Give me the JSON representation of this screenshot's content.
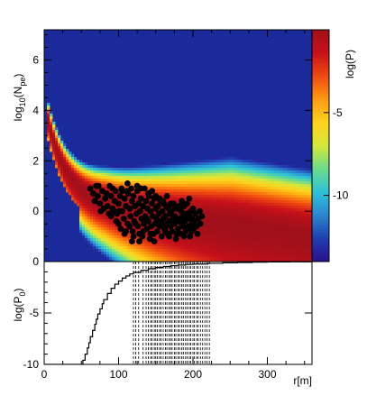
{
  "chart_data": [
    {
      "type": "heatmap",
      "xlim": [
        0,
        360
      ],
      "ylim": [
        -2,
        7.2
      ],
      "ylabel_main": "log",
      "ylabel_sub": "10",
      "ylabel_paren": "(N",
      "ylabel_sub2": "pe",
      "ylabel_close": ")",
      "y_ticks": [
        "0",
        "2",
        "4",
        "6"
      ],
      "y_tick_values": [
        0,
        2,
        4,
        6
      ],
      "colorbar": {
        "label": "log(P)",
        "range": [
          -14,
          0
        ],
        "tick_labels": [
          "-5",
          "-10"
        ],
        "tick_values": [
          -5,
          -10
        ],
        "colors": [
          "#2a0f8f",
          "#1f3fb0",
          "#2a86d0",
          "#2dc2d8",
          "#6bdc8a",
          "#d6e83a",
          "#ffd21c",
          "#ff9a10",
          "#f04a10",
          "#c8101a",
          "#a0101a"
        ]
      },
      "points": [
        [
          62,
          0.9
        ],
        [
          70,
          1.0
        ],
        [
          66,
          0.7
        ],
        [
          75,
          0.3
        ],
        [
          78,
          0.8
        ],
        [
          82,
          0.5
        ],
        [
          85,
          0.2
        ],
        [
          88,
          1.0
        ],
        [
          90,
          0.6
        ],
        [
          92,
          0.1
        ],
        [
          95,
          0.4
        ],
        [
          96,
          0.8
        ],
        [
          98,
          -0.1
        ],
        [
          100,
          0.3
        ],
        [
          102,
          0.6
        ],
        [
          104,
          0.9
        ],
        [
          105,
          0.0
        ],
        [
          107,
          -0.3
        ],
        [
          108,
          0.5
        ],
        [
          110,
          0.2
        ],
        [
          112,
          -0.5
        ],
        [
          113,
          0.7
        ],
        [
          115,
          0.1
        ],
        [
          116,
          -0.2
        ],
        [
          118,
          0.4
        ],
        [
          119,
          -0.8
        ],
        [
          120,
          0.6
        ],
        [
          121,
          -0.4
        ],
        [
          122,
          0.2
        ],
        [
          124,
          -0.1
        ],
        [
          125,
          0.8
        ],
        [
          126,
          -0.6
        ],
        [
          127,
          0.3
        ],
        [
          128,
          -0.9
        ],
        [
          129,
          0.0
        ],
        [
          130,
          0.5
        ],
        [
          131,
          -0.3
        ],
        [
          132,
          -1.0
        ],
        [
          133,
          0.2
        ],
        [
          134,
          -0.5
        ],
        [
          135,
          0.9
        ],
        [
          136,
          -0.2
        ],
        [
          137,
          0.4
        ],
        [
          138,
          -0.7
        ],
        [
          139,
          0.1
        ],
        [
          140,
          -0.4
        ],
        [
          141,
          0.6
        ],
        [
          142,
          -1.1
        ],
        [
          143,
          0.0
        ],
        [
          144,
          -0.6
        ],
        [
          145,
          0.3
        ],
        [
          146,
          -0.2
        ],
        [
          147,
          -0.9
        ],
        [
          148,
          0.5
        ],
        [
          149,
          -0.5
        ],
        [
          150,
          0.1
        ],
        [
          151,
          -0.3
        ],
        [
          152,
          -0.8
        ],
        [
          153,
          0.2
        ],
        [
          154,
          -0.1
        ],
        [
          155,
          -0.6
        ],
        [
          156,
          0.4
        ],
        [
          157,
          -0.4
        ],
        [
          158,
          -1.0
        ],
        [
          159,
          0.0
        ],
        [
          160,
          -0.3
        ],
        [
          161,
          0.3
        ],
        [
          162,
          -0.7
        ],
        [
          163,
          -0.2
        ],
        [
          164,
          0.2
        ],
        [
          165,
          -0.5
        ],
        [
          166,
          -0.9
        ],
        [
          167,
          0.1
        ],
        [
          168,
          -0.4
        ],
        [
          169,
          -0.1
        ],
        [
          170,
          -0.6
        ],
        [
          171,
          0.0
        ],
        [
          172,
          -0.8
        ],
        [
          173,
          -0.3
        ],
        [
          174,
          0.3
        ],
        [
          175,
          -0.5
        ],
        [
          176,
          -0.2
        ],
        [
          177,
          -1.1
        ],
        [
          178,
          0.1
        ],
        [
          179,
          -0.4
        ],
        [
          180,
          -0.7
        ],
        [
          181,
          0.2
        ],
        [
          182,
          -0.3
        ],
        [
          183,
          -0.9
        ],
        [
          184,
          0.0
        ],
        [
          185,
          -0.5
        ],
        [
          186,
          -0.2
        ],
        [
          187,
          -0.6
        ],
        [
          188,
          0.2
        ],
        [
          189,
          -0.4
        ],
        [
          190,
          -0.8
        ],
        [
          191,
          -0.1
        ],
        [
          192,
          0.3
        ],
        [
          193,
          -0.3
        ],
        [
          194,
          -0.6
        ],
        [
          195,
          -0.2
        ],
        [
          196,
          -1.0
        ],
        [
          197,
          0.0
        ],
        [
          198,
          -0.5
        ],
        [
          199,
          -0.3
        ],
        [
          200,
          0.1
        ],
        [
          201,
          -0.7
        ],
        [
          202,
          -0.4
        ],
        [
          203,
          -0.1
        ],
        [
          205,
          -0.6
        ],
        [
          207,
          -0.3
        ],
        [
          209,
          0.0
        ],
        [
          210,
          -0.5
        ],
        [
          212,
          -0.2
        ],
        [
          90,
          -0.2
        ],
        [
          100,
          -0.5
        ],
        [
          110,
          -0.8
        ],
        [
          115,
          -0.6
        ],
        [
          120,
          -1.0
        ],
        [
          105,
          0.8
        ],
        [
          112,
          1.1
        ],
        [
          125,
          1.0
        ],
        [
          130,
          0.9
        ],
        [
          140,
          0.7
        ],
        [
          145,
          0.8
        ],
        [
          150,
          0.6
        ],
        [
          155,
          0.5
        ],
        [
          160,
          0.4
        ],
        [
          165,
          0.6
        ],
        [
          170,
          0.3
        ],
        [
          175,
          0.2
        ],
        [
          185,
          0.4
        ],
        [
          195,
          0.5
        ],
        [
          92,
          0.9
        ],
        [
          97,
          -0.4
        ],
        [
          108,
          -0.9
        ],
        [
          118,
          -1.2
        ],
        [
          128,
          -1.2
        ],
        [
          138,
          -0.3
        ],
        [
          148,
          -1.2
        ],
        [
          158,
          -0.5
        ],
        [
          168,
          -1.0
        ],
        [
          178,
          -0.9
        ],
        [
          188,
          -1.0
        ],
        [
          198,
          -0.8
        ],
        [
          206,
          -0.9
        ],
        [
          80,
          0.1
        ],
        [
          84,
          0.7
        ],
        [
          87,
          -0.1
        ],
        [
          72,
          0.6
        ],
        [
          76,
          0.0
        ],
        [
          68,
          0.4
        ],
        [
          73,
          1.0
        ],
        [
          94,
          0.0
        ],
        [
          101,
          0.0
        ],
        [
          103,
          -0.7
        ],
        [
          111,
          0.8
        ],
        [
          117,
          0.9
        ],
        [
          123,
          -0.5
        ],
        [
          133,
          -0.8
        ],
        [
          143,
          -0.9
        ],
        [
          153,
          -0.4
        ],
        [
          163,
          -0.8
        ],
        [
          173,
          -0.2
        ],
        [
          183,
          0.1
        ],
        [
          193,
          -0.7
        ],
        [
          203,
          -0.6
        ]
      ]
    },
    {
      "type": "line",
      "xlim": [
        0,
        360
      ],
      "ylim": [
        -10,
        0
      ],
      "xlabel": "r[m]",
      "ylabel_main": "log(P",
      "ylabel_sub": "0",
      "ylabel_close": ")",
      "x_ticks": [
        "0",
        "100",
        "200",
        "300"
      ],
      "x_tick_values": [
        0,
        100,
        200,
        300
      ],
      "y_ticks": [
        "0",
        "-5",
        "-10"
      ],
      "y_tick_values": [
        0,
        -5,
        -10
      ],
      "x": [
        0,
        50,
        52,
        55,
        58,
        60,
        62,
        65,
        68,
        70,
        72,
        75,
        78,
        80,
        85,
        90,
        95,
        100,
        105,
        110,
        115,
        120,
        130,
        140,
        150,
        160,
        170,
        180,
        190,
        200,
        220,
        240,
        260,
        280,
        300,
        330,
        360
      ],
      "y": [
        -10,
        -10,
        -9.6,
        -9.0,
        -8.4,
        -7.9,
        -7.3,
        -6.7,
        -6.1,
        -5.6,
        -5.1,
        -4.6,
        -4.1,
        -3.7,
        -3.1,
        -2.6,
        -2.2,
        -1.9,
        -1.6,
        -1.4,
        -1.2,
        -1.05,
        -0.85,
        -0.7,
        -0.58,
        -0.48,
        -0.4,
        -0.34,
        -0.28,
        -0.24,
        -0.17,
        -0.12,
        -0.09,
        -0.06,
        -0.04,
        -0.02,
        -0.01
      ],
      "vlines": [
        120,
        123,
        127,
        133,
        137,
        140,
        143,
        145,
        148,
        150,
        152,
        155,
        157,
        160,
        163,
        165,
        168,
        170,
        172,
        175,
        177,
        180,
        182,
        185,
        187,
        190,
        192,
        195,
        197,
        200,
        202,
        205,
        207,
        210,
        213,
        216,
        219,
        222
      ]
    }
  ]
}
